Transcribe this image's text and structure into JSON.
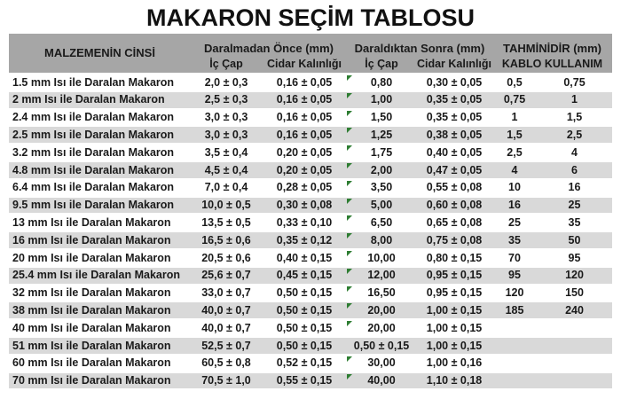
{
  "title": "MAKARON SEÇİM TABLOSU",
  "colors": {
    "header_bg": "#a6a6a6",
    "stripe_bg": "#d9d9d9",
    "row_bg": "#ffffff",
    "text": "#1a1a1a",
    "error_marker_green": "#2e7d32"
  },
  "icons": {
    "error_marker": "green-corner-triangle-icon"
  },
  "header": {
    "material": "MALZEMENİN CİNSİ",
    "group_before": "Daralmadan Önce (mm)",
    "group_after": "Daraldıktan Sonra (mm)",
    "group_estimate": "TAHMİNİDİR (mm)",
    "sub_ic_cap": "İç Çap",
    "sub_cidar": "Cidar Kalınlığı",
    "sub_kablo": "KABLO KULLANIM"
  },
  "chart_data": {
    "type": "table",
    "title": "MAKARON SEÇİM TABLOSU",
    "column_groups": [
      {
        "label": "MALZEMENİN CİNSİ",
        "span": 1
      },
      {
        "label": "Daralmadan Önce (mm)",
        "span": 2
      },
      {
        "label": "Daraldıktan Sonra (mm)",
        "span": 2
      },
      {
        "label": "TAHMİNİDİR (mm)",
        "span": 2
      }
    ],
    "columns": [
      "MALZEMENİN CİNSİ",
      "Daralmadan Önce İç Çap",
      "Daralmadan Önce Cidar Kalınlığı",
      "Daraldıktan Sonra İç Çap",
      "Daraldıktan Sonra Cidar Kalınlığı",
      "KABLO KULLANIM (alt)",
      "KABLO KULLANIM (üst)"
    ],
    "rows": [
      [
        "1.5 mm Isı ile Daralan Makaron",
        "2,0 ± 0,3",
        "0,16 ± 0,05",
        "0,80",
        "0,30 ± 0,05",
        "0,5",
        "0,75"
      ],
      [
        "2 mm Isı ile Daralan Makaron",
        "2,5 ± 0,3",
        "0,16 ± 0,05",
        "1,00",
        "0,35 ± 0,05",
        "0,75",
        "1"
      ],
      [
        "2.4 mm Isı ile Daralan Makaron",
        "3,0 ± 0,3",
        "0,16 ± 0,05",
        "1,50",
        "0,35 ± 0,05",
        "1",
        "1,5"
      ],
      [
        "2.5 mm Isı ile Daralan Makaron",
        "3,0 ± 0,3",
        "0,16 ± 0,05",
        "1,25",
        "0,38 ± 0,05",
        "1,5",
        "2,5"
      ],
      [
        "3.2 mm Isı ile Daralan Makaron",
        "3,5 ± 0,4",
        "0,20 ± 0,05",
        "1,75",
        "0,40 ± 0,05",
        "2,5",
        "4"
      ],
      [
        "4.8 mm Isı ile Daralan Makaron",
        "4,5 ± 0,4",
        "0,20 ± 0,05",
        "2,00",
        "0,47 ± 0,05",
        "4",
        "6"
      ],
      [
        "6.4 mm Isı ile Daralan Makaron",
        "7,0 ± 0,4",
        "0,28 ± 0,05",
        "3,50",
        "0,55 ± 0,08",
        "10",
        "16"
      ],
      [
        "9.5 mm Isı ile Daralan Makaron",
        "10,0 ± 0,5",
        "0,30 ± 0,08",
        "5,00",
        "0,60 ± 0,08",
        "16",
        "25"
      ],
      [
        "13 mm Isı ile Daralan Makaron",
        "13,5 ± 0,5",
        "0,33 ± 0,10",
        "6,50",
        "0,65 ± 0,08",
        "25",
        "35"
      ],
      [
        "16 mm Isı ile Daralan Makaron",
        "16,5 ± 0,6",
        "0,35 ± 0,12",
        "8,00",
        "0,75 ± 0,08",
        "35",
        "50"
      ],
      [
        "20 mm Isı ile Daralan Makaron",
        "20,5 ± 0,6",
        "0,40 ± 0,15",
        "10,00",
        "0,80 ± 0,15",
        "70",
        "95"
      ],
      [
        "25.4 mm Isı ile Daralan Makaron",
        "25,6 ± 0,7",
        "0,45 ± 0,15",
        "12,00",
        "0,95 ± 0,15",
        "95",
        "120"
      ],
      [
        "32 mm Isı ile Daralan Makaron",
        "33,0 ± 0,7",
        "0,50 ± 0,15",
        "16,50",
        "0,95 ± 0,15",
        "120",
        "150"
      ],
      [
        "38 mm Isı ile Daralan Makaron",
        "40,0 ± 0,7",
        "0,50 ± 0,15",
        "20,00",
        "1,00 ± 0,15",
        "185",
        "240"
      ],
      [
        "40 mm Isı ile Daralan Makaron",
        "40,0 ± 0,7",
        "0,50 ± 0,15",
        "20,00",
        "1,00 ± 0,15",
        "",
        ""
      ],
      [
        "51 mm Isı ile Daralan Makaron",
        "52,5 ± 0,7",
        "0,50 ± 0,15",
        "0,50 ± 0,15",
        "1,00 ± 0,15",
        "",
        ""
      ],
      [
        "60 mm Isı ile Daralan Makaron",
        "60,5 ± 0,8",
        "0,52 ± 0,15",
        "30,00",
        "1,00 ± 0,16",
        "",
        ""
      ],
      [
        "70 mm Isı ile Daralan Makaron",
        "70,5 ± 1,0",
        "0,55 ± 0,15",
        "40,00",
        "1,10 ± 0,18",
        "",
        ""
      ]
    ],
    "error_marker_rows": [
      0,
      1,
      2,
      3,
      4,
      5,
      6,
      7,
      8,
      9,
      10,
      11,
      12,
      13,
      14,
      16,
      17
    ],
    "error_marker_column": 3,
    "layout_hints": {
      "stripe_even_rows": true,
      "first_data_row_background": "white",
      "grid": "white row separators only"
    }
  }
}
